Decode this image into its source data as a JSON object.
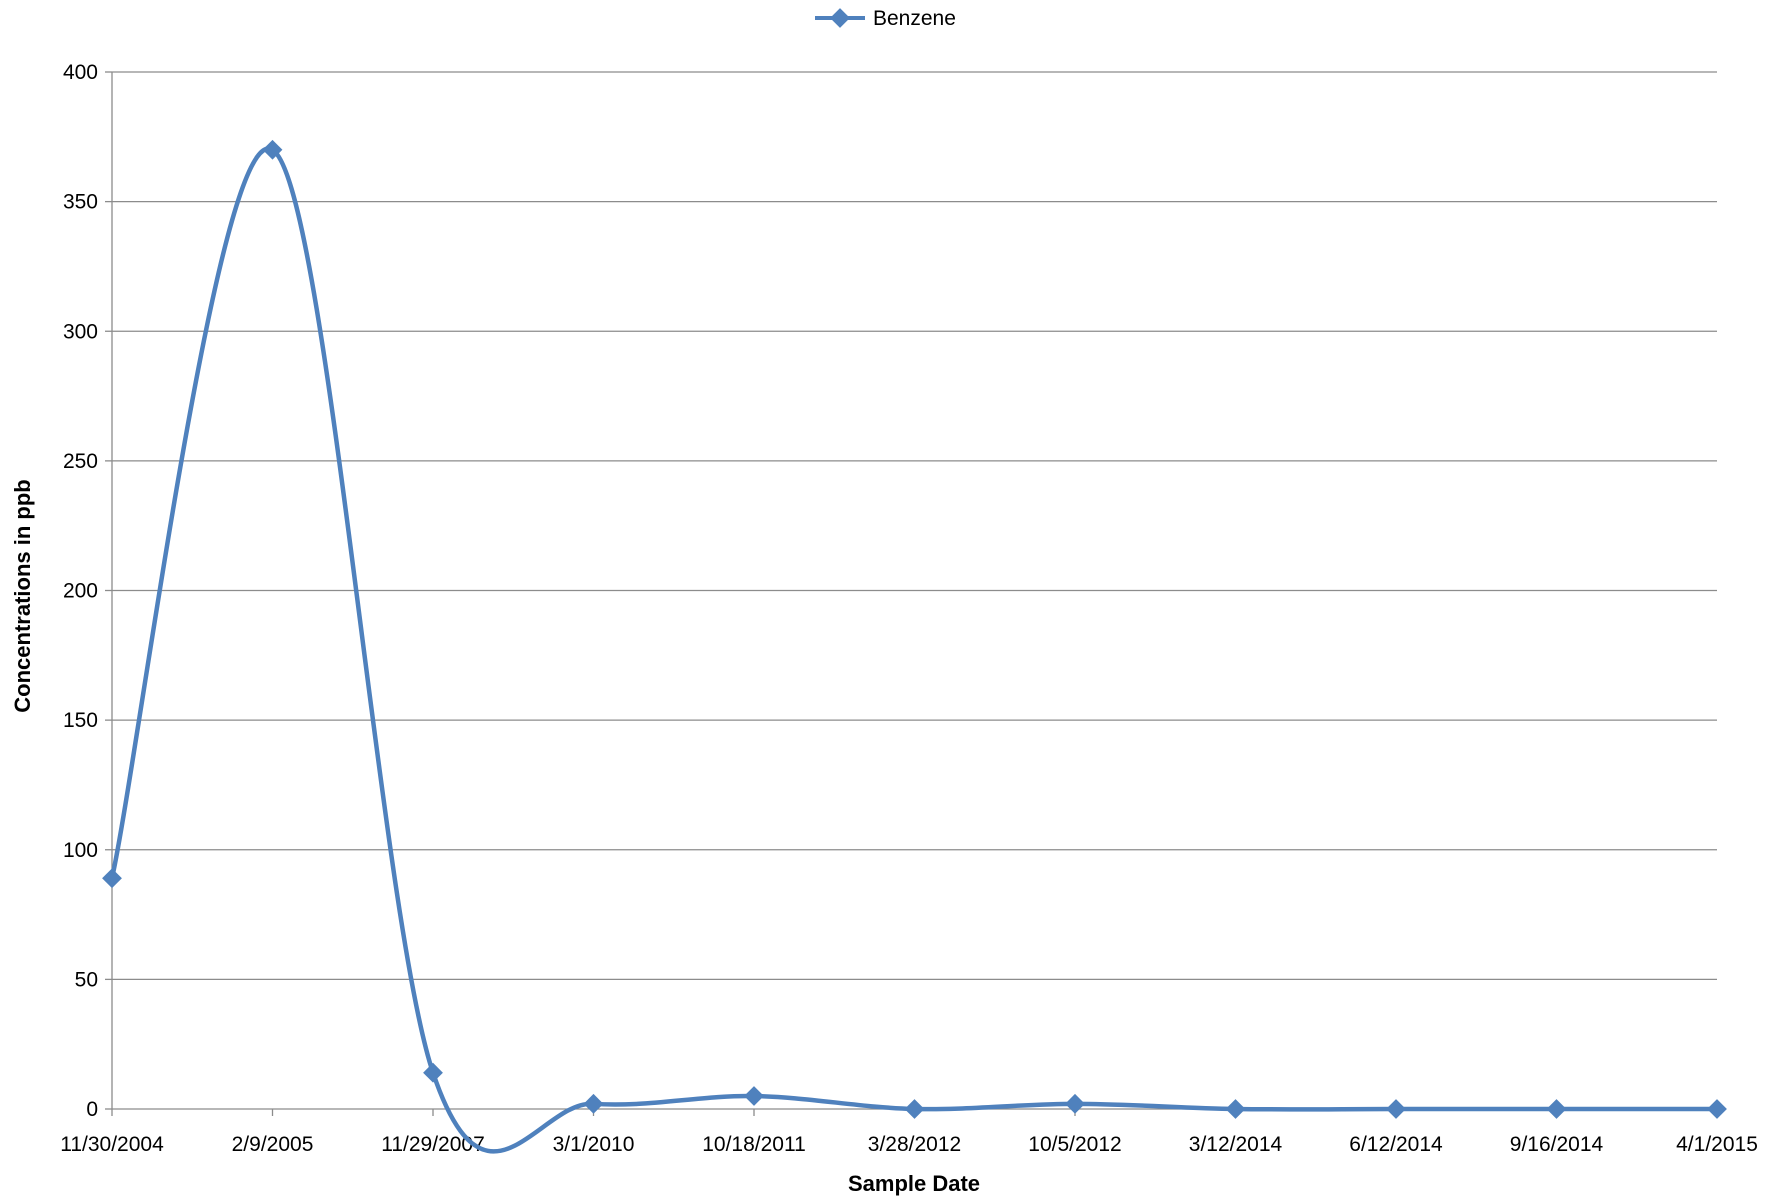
{
  "chart_data": {
    "type": "line",
    "xlabel": "Sample Date",
    "ylabel": "Concentrations in ppb",
    "categories": [
      "11/30/2004",
      "2/9/2005",
      "11/29/2007",
      "3/1/2010",
      "10/18/2011",
      "3/28/2012",
      "10/5/2012",
      "3/12/2014",
      "6/12/2014",
      "9/16/2014",
      "4/1/2015"
    ],
    "series": [
      {
        "name": "Benzene",
        "values": [
          89,
          370,
          14,
          2,
          5,
          0,
          2,
          0,
          0,
          0,
          0
        ],
        "color": "#4F81BD",
        "marker": "diamond",
        "smoothed": true
      }
    ],
    "ylim": [
      0,
      400
    ],
    "yticks": [
      0,
      50,
      100,
      150,
      200,
      250,
      300,
      350,
      400
    ],
    "grid": true,
    "legend": "top-center"
  }
}
